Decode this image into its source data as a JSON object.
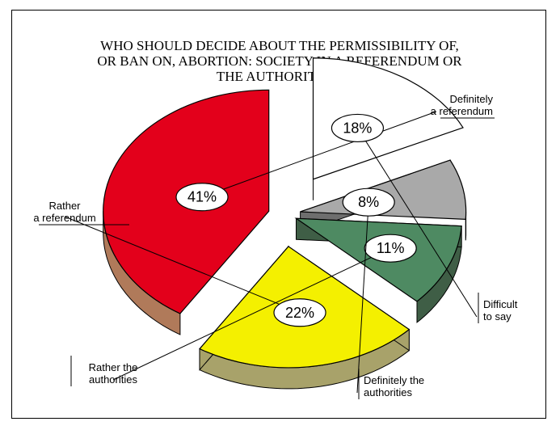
{
  "chart_data": {
    "type": "pie",
    "title": "WHO SHOULD DECIDE ABOUT THE PERMISSIBILITY OF,\nOR BAN ON, ABORTION: SOCIETY IN A REFERENDUM OR\nTHE AUTHORITIES?",
    "slices": [
      {
        "label_lines": [
          "Definitely",
          "a referendum"
        ],
        "value": 41,
        "value_label": "41%",
        "color": "#e3001b",
        "side_color": "#b07a5a"
      },
      {
        "label_lines": [
          "Rather",
          "a referendum"
        ],
        "value": 22,
        "value_label": "22%",
        "color": "#f4f000",
        "side_color": "#a8a26a"
      },
      {
        "label_lines": [
          "Rather the",
          "authorities"
        ],
        "value": 11,
        "value_label": "11%",
        "color": "#4e8a62",
        "side_color": "#3f5e46"
      },
      {
        "label_lines": [
          "Definitely the",
          "authorities"
        ],
        "value": 8,
        "value_label": "8%",
        "color": "#a9a9a9",
        "side_color": "#6e6e6e"
      },
      {
        "label_lines": [
          "Difficult",
          "to say"
        ],
        "value": 18,
        "value_label": "18%",
        "color": "#ffffff",
        "side_color": "#b8b8b8"
      }
    ]
  }
}
